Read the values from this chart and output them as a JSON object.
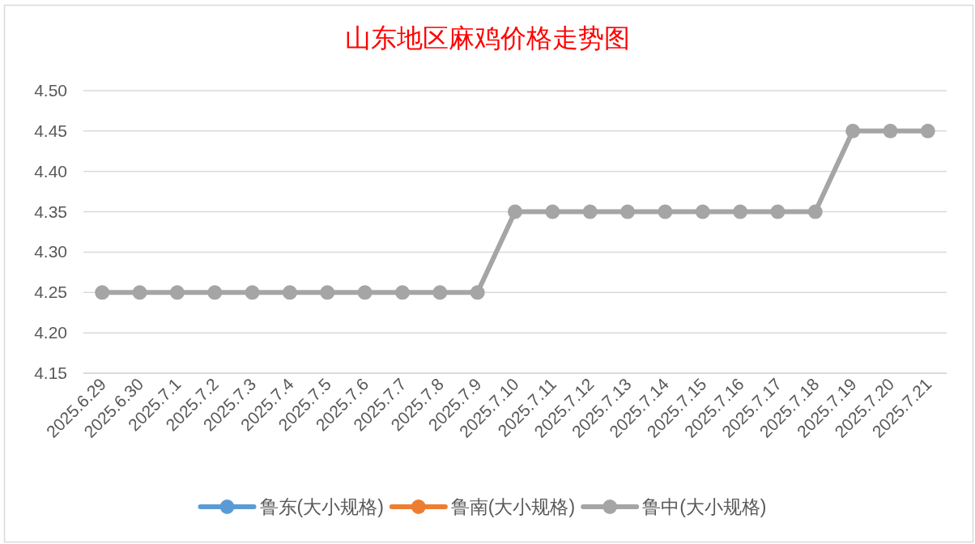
{
  "chart_data": {
    "type": "line",
    "title": "山东地区麻鸡价格走势图",
    "categories": [
      "2025.6.29",
      "2025.6.30",
      "2025.7.1",
      "2025.7.2",
      "2025.7.3",
      "2025.7.4",
      "2025.7.5",
      "2025.7.6",
      "2025.7.7",
      "2025.7.8",
      "2025.7.9",
      "2025.7.10",
      "2025.7.11",
      "2025.7.12",
      "2025.7.13",
      "2025.7.14",
      "2025.7.15",
      "2025.7.16",
      "2025.7.17",
      "2025.7.18",
      "2025.7.19",
      "2025.7.20",
      "2025.7.21"
    ],
    "series": [
      {
        "name": "鲁东(大小规格)",
        "color": "#5b9bd5",
        "values": [
          null,
          null,
          null,
          null,
          null,
          null,
          null,
          null,
          null,
          null,
          null,
          null,
          null,
          null,
          null,
          null,
          null,
          null,
          null,
          null,
          null,
          null,
          null
        ]
      },
      {
        "name": "鲁南(大小规格)",
        "color": "#ed7d31",
        "values": [
          null,
          null,
          null,
          null,
          null,
          null,
          null,
          null,
          null,
          null,
          null,
          null,
          null,
          null,
          null,
          null,
          null,
          null,
          null,
          null,
          null,
          null,
          null
        ]
      },
      {
        "name": "鲁中(大小规格)",
        "color": "#a5a5a5",
        "values": [
          4.25,
          4.25,
          4.25,
          4.25,
          4.25,
          4.25,
          4.25,
          4.25,
          4.25,
          4.25,
          4.25,
          4.35,
          4.35,
          4.35,
          4.35,
          4.35,
          4.35,
          4.35,
          4.35,
          4.35,
          4.45,
          4.45,
          4.45
        ]
      }
    ],
    "ylim": [
      4.15,
      4.5
    ],
    "yticks": [
      4.15,
      {
        "value": 4.2,
        "label": "4.20"
      },
      4.25,
      {
        "value": 4.3,
        "label": "4.30"
      },
      4.35,
      {
        "value": 4.4,
        "label": "4.40"
      },
      4.45,
      {
        "value": 4.5,
        "label": "4.50"
      }
    ],
    "grid": "y",
    "legend": "bottom",
    "marker": "circle",
    "line_style": "solid"
  }
}
